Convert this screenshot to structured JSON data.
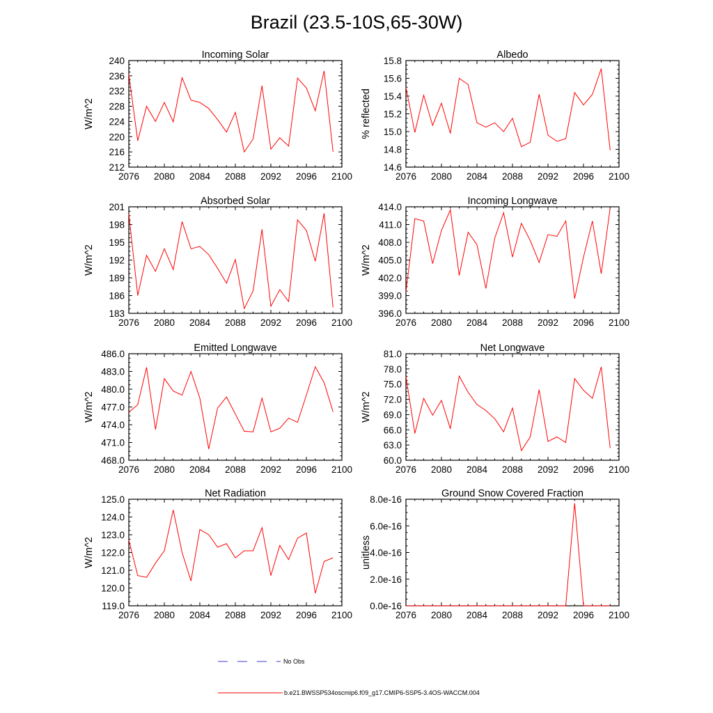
{
  "figure": {
    "title": "Brazil (23.5-10S,65-30W)",
    "colors": {
      "model": "#ff0000",
      "obs": "#3b3bd6",
      "frame": "#000000",
      "background": "#ffffff"
    }
  },
  "legend": {
    "entries": [
      {
        "label": "No Obs",
        "style": "dashed",
        "color": "#3b3bd6"
      },
      {
        "label": "b.e21.BWSSP534oscmip6.f09_g17.CMIP6-SSP5-3.4OS-WACCM.004",
        "style": "solid",
        "color": "#ff0000"
      }
    ]
  },
  "chart_data": [
    {
      "type": "line",
      "title": "Incoming Solar",
      "ylabel": "W/m^2",
      "xlabel": "",
      "xlim": [
        2076,
        2100
      ],
      "ylim": [
        212,
        240
      ],
      "xticks": [
        "2076",
        "2080",
        "2084",
        "2088",
        "2092",
        "2096",
        "2100"
      ],
      "yticks": [
        "212",
        "216",
        "220",
        "224",
        "228",
        "232",
        "236",
        "240"
      ],
      "x": [
        2076,
        2077,
        2078,
        2079,
        2080,
        2081,
        2082,
        2083,
        2084,
        2085,
        2086,
        2087,
        2088,
        2089,
        2090,
        2091,
        2092,
        2093,
        2094,
        2095,
        2096,
        2097,
        2098,
        2099
      ],
      "series": [
        {
          "name": "b.e21.BWSSP534oscmip6.f09_g17.CMIP6-SSP5-3.4OS-WACCM.004",
          "values": [
            236.4,
            218.9,
            228.0,
            224.0,
            229.0,
            223.9,
            235.5,
            229.6,
            229.0,
            227.4,
            224.5,
            221.2,
            226.4,
            216.0,
            219.4,
            233.4,
            216.7,
            219.7,
            217.5,
            235.4,
            232.8,
            226.8,
            237.3,
            216.0
          ]
        }
      ]
    },
    {
      "type": "line",
      "title": "Albedo",
      "ylabel": "% reflected",
      "xlabel": "",
      "xlim": [
        2076,
        2100
      ],
      "ylim": [
        14.6,
        15.8
      ],
      "xticks": [
        "2076",
        "2080",
        "2084",
        "2088",
        "2092",
        "2096",
        "2100"
      ],
      "yticks": [
        "14.6",
        "14.8",
        "15.0",
        "15.2",
        "15.4",
        "15.6",
        "15.8"
      ],
      "x": [
        2076,
        2077,
        2078,
        2079,
        2080,
        2081,
        2082,
        2083,
        2084,
        2085,
        2086,
        2087,
        2088,
        2089,
        2090,
        2091,
        2092,
        2093,
        2094,
        2095,
        2096,
        2097,
        2098,
        2099
      ],
      "series": [
        {
          "name": "b.e21.BWSSP534oscmip6.f09_g17.CMIP6-SSP5-3.4OS-WACCM.004",
          "values": [
            15.5,
            14.99,
            15.41,
            15.07,
            15.32,
            14.98,
            15.6,
            15.53,
            15.1,
            15.05,
            15.1,
            15.0,
            15.15,
            14.83,
            14.88,
            15.42,
            14.96,
            14.89,
            14.92,
            15.44,
            15.3,
            15.42,
            15.71,
            14.79
          ]
        }
      ]
    },
    {
      "type": "line",
      "title": "Absorbed Solar",
      "ylabel": "W/m^2",
      "xlabel": "",
      "xlim": [
        2076,
        2100
      ],
      "ylim": [
        183,
        201
      ],
      "xticks": [
        "2076",
        "2080",
        "2084",
        "2088",
        "2092",
        "2096",
        "2100"
      ],
      "yticks": [
        "183",
        "186",
        "189",
        "192",
        "195",
        "198",
        "201"
      ],
      "x": [
        2076,
        2077,
        2078,
        2079,
        2080,
        2081,
        2082,
        2083,
        2084,
        2085,
        2086,
        2087,
        2088,
        2089,
        2090,
        2091,
        2092,
        2093,
        2094,
        2095,
        2096,
        2097,
        2098,
        2099
      ],
      "series": [
        {
          "name": "b.e21.BWSSP534oscmip6.f09_g17.CMIP6-SSP5-3.4OS-WACCM.004",
          "values": [
            199.8,
            186.0,
            192.8,
            190.1,
            193.9,
            190.4,
            198.5,
            193.9,
            194.3,
            192.9,
            190.6,
            188.1,
            192.1,
            183.8,
            186.8,
            197.2,
            184.2,
            187.0,
            185.0,
            198.8,
            197.0,
            191.8,
            199.9,
            184.0
          ]
        }
      ]
    },
    {
      "type": "line",
      "title": "Incoming Longwave",
      "ylabel": "W/m^2",
      "xlabel": "",
      "xlim": [
        2076,
        2100
      ],
      "ylim": [
        396.0,
        414.0
      ],
      "xticks": [
        "2076",
        "2080",
        "2084",
        "2088",
        "2092",
        "2096",
        "2100"
      ],
      "yticks": [
        "396.0",
        "399.0",
        "402.0",
        "405.0",
        "408.0",
        "411.0",
        "414.0"
      ],
      "x": [
        2076,
        2077,
        2078,
        2079,
        2080,
        2081,
        2082,
        2083,
        2084,
        2085,
        2086,
        2087,
        2088,
        2089,
        2090,
        2091,
        2092,
        2093,
        2094,
        2095,
        2096,
        2097,
        2098,
        2099
      ],
      "series": [
        {
          "name": "b.e21.BWSSP534oscmip6.f09_g17.CMIP6-SSP5-3.4OS-WACCM.004",
          "values": [
            399.6,
            412.0,
            411.6,
            404.4,
            410.0,
            413.5,
            402.4,
            409.7,
            407.6,
            400.2,
            408.7,
            413.0,
            405.5,
            411.2,
            408.3,
            404.6,
            409.3,
            409.0,
            411.6,
            398.5,
            405.5,
            411.6,
            402.7,
            413.8
          ]
        }
      ]
    },
    {
      "type": "line",
      "title": "Emitted Longwave",
      "ylabel": "W/m^2",
      "xlabel": "",
      "xlim": [
        2076,
        2100
      ],
      "ylim": [
        468.0,
        486.0
      ],
      "xticks": [
        "2076",
        "2080",
        "2084",
        "2088",
        "2092",
        "2096",
        "2100"
      ],
      "yticks": [
        "468.0",
        "471.0",
        "474.0",
        "477.0",
        "480.0",
        "483.0",
        "486.0"
      ],
      "x": [
        2076,
        2077,
        2078,
        2079,
        2080,
        2081,
        2082,
        2083,
        2084,
        2085,
        2086,
        2087,
        2088,
        2089,
        2090,
        2091,
        2092,
        2093,
        2094,
        2095,
        2096,
        2097,
        2098,
        2099
      ],
      "series": [
        {
          "name": "b.e21.BWSSP534oscmip6.f09_g17.CMIP6-SSP5-3.4OS-WACCM.004",
          "values": [
            476.1,
            477.4,
            483.7,
            473.2,
            481.8,
            479.7,
            479.0,
            483.0,
            478.5,
            469.9,
            476.8,
            478.7,
            475.8,
            472.9,
            472.8,
            478.5,
            472.8,
            473.4,
            475.1,
            474.4,
            479.0,
            483.8,
            481.1,
            476.2
          ]
        }
      ]
    },
    {
      "type": "line",
      "title": "Net Longwave",
      "ylabel": "W/m^2",
      "xlabel": "",
      "xlim": [
        2076,
        2100
      ],
      "ylim": [
        60.0,
        81.0
      ],
      "xticks": [
        "2076",
        "2080",
        "2084",
        "2088",
        "2092",
        "2096",
        "2100"
      ],
      "yticks": [
        "60.0",
        "63.0",
        "66.0",
        "69.0",
        "72.0",
        "75.0",
        "78.0",
        "81.0"
      ],
      "x": [
        2076,
        2077,
        2078,
        2079,
        2080,
        2081,
        2082,
        2083,
        2084,
        2085,
        2086,
        2087,
        2088,
        2089,
        2090,
        2091,
        2092,
        2093,
        2094,
        2095,
        2096,
        2097,
        2098,
        2099
      ],
      "series": [
        {
          "name": "b.e21.BWSSP534oscmip6.f09_g17.CMIP6-SSP5-3.4OS-WACCM.004",
          "values": [
            76.5,
            65.3,
            72.2,
            68.9,
            71.8,
            66.2,
            76.6,
            73.4,
            71.0,
            69.8,
            68.2,
            65.6,
            70.3,
            61.9,
            64.6,
            73.9,
            63.7,
            64.6,
            63.5,
            76.1,
            73.8,
            72.2,
            78.4,
            62.4
          ]
        }
      ]
    },
    {
      "type": "line",
      "title": "Net Radiation",
      "ylabel": "W/m^2",
      "xlabel": "",
      "xlim": [
        2076,
        2100
      ],
      "ylim": [
        119.0,
        125.0
      ],
      "xticks": [
        "2076",
        "2080",
        "2084",
        "2088",
        "2092",
        "2096",
        "2100"
      ],
      "yticks": [
        "119.0",
        "120.0",
        "121.0",
        "122.0",
        "123.0",
        "124.0",
        "125.0"
      ],
      "x": [
        2076,
        2077,
        2078,
        2079,
        2080,
        2081,
        2082,
        2083,
        2084,
        2085,
        2086,
        2087,
        2088,
        2089,
        2090,
        2091,
        2092,
        2093,
        2094,
        2095,
        2096,
        2097,
        2098,
        2099
      ],
      "series": [
        {
          "name": "b.e21.BWSSP534oscmip6.f09_g17.CMIP6-SSP5-3.4OS-WACCM.004",
          "values": [
            122.7,
            120.7,
            120.6,
            121.4,
            122.1,
            124.4,
            122.0,
            120.4,
            123.3,
            123.0,
            122.3,
            122.5,
            121.7,
            122.1,
            122.1,
            123.4,
            120.7,
            122.4,
            121.6,
            122.8,
            123.1,
            119.7,
            121.5,
            121.7
          ]
        }
      ]
    },
    {
      "type": "line",
      "title": "Ground Snow Covered Fraction",
      "ylabel": "unitless",
      "xlabel": "",
      "xlim": [
        2076,
        2100
      ],
      "ylim": [
        0.0,
        8e-16
      ],
      "xticks": [
        "2076",
        "2080",
        "2084",
        "2088",
        "2092",
        "2096",
        "2100"
      ],
      "yticks": [
        "0.0e-16",
        "2.0e-16",
        "4.0e-16",
        "6.0e-16",
        "8.0e-16"
      ],
      "x": [
        2076,
        2077,
        2078,
        2079,
        2080,
        2081,
        2082,
        2083,
        2084,
        2085,
        2086,
        2087,
        2088,
        2089,
        2090,
        2091,
        2092,
        2093,
        2094,
        2095,
        2096,
        2097,
        2098,
        2099
      ],
      "series": [
        {
          "name": "b.e21.BWSSP534oscmip6.f09_g17.CMIP6-SSP5-3.4OS-WACCM.004",
          "values": [
            0,
            0,
            0,
            0,
            0,
            0,
            0,
            0,
            0,
            0,
            0,
            0,
            0,
            0,
            0,
            0,
            0,
            0,
            0,
            7.7e-16,
            0,
            0,
            0,
            0
          ]
        }
      ]
    }
  ]
}
